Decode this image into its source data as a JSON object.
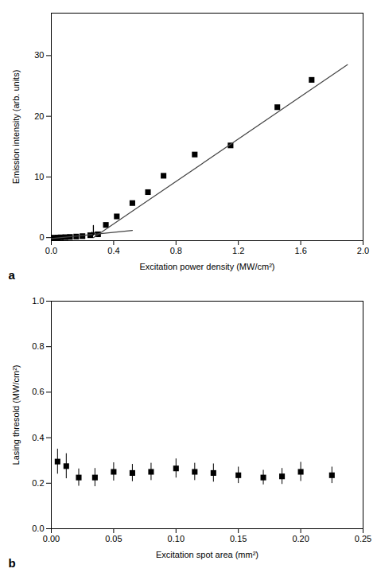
{
  "chart_data": [
    {
      "type": "scatter",
      "panel_label": "a",
      "xlabel": "Excitation power density (MW/cm²)",
      "ylabel": "Emission intensity (arb. units)",
      "xlim": [
        0.0,
        2.0
      ],
      "ylim": [
        -0.5,
        37
      ],
      "xticks": [
        {
          "value": 0.0,
          "label": "0.0"
        },
        0.4,
        0.8,
        1.2,
        1.6,
        {
          "value": 2.0,
          "label": "2.0"
        }
      ],
      "yticks": [
        0,
        10,
        20,
        30
      ],
      "grid": false,
      "series": [
        {
          "type": "scatter",
          "marker": "square",
          "color": "#000000",
          "x": [
            0.02,
            0.04,
            0.06,
            0.09,
            0.12,
            0.16,
            0.2,
            0.25,
            0.3,
            0.35,
            0.42,
            0.52,
            0.62,
            0.72,
            0.92,
            1.15,
            1.45,
            1.67
          ],
          "values": [
            0.0,
            0.02,
            0.05,
            0.08,
            0.12,
            0.18,
            0.25,
            0.4,
            0.55,
            2.1,
            3.5,
            5.7,
            7.5,
            10.2,
            13.7,
            15.2,
            21.5,
            26.0
          ]
        },
        {
          "type": "line",
          "line_style": "solid",
          "color": "#444444",
          "x": [
            0.27,
            1.9
          ],
          "values": [
            0.0,
            28.5
          ]
        },
        {
          "type": "line",
          "line_style": "solid",
          "color": "#444444",
          "x": [
            0.0,
            0.52
          ],
          "values": [
            -0.15,
            1.2
          ]
        }
      ],
      "arrow": {
        "x": 0.27,
        "y_from": 2.0,
        "y_to": 0.45,
        "color": "#000000"
      }
    },
    {
      "type": "scatter",
      "panel_label": "b",
      "xlabel": "Excitation spot area (mm²)",
      "ylabel": "Lasing thresold (MW/cm²)",
      "xlim": [
        0.0,
        0.25
      ],
      "ylim": [
        0.0,
        1.0
      ],
      "xticks": [
        {
          "value": 0.0,
          "label": "0.00"
        },
        0.05,
        {
          "value": 0.1,
          "label": "0.10"
        },
        0.15,
        {
          "value": 0.2,
          "label": "0.20"
        },
        0.25
      ],
      "yticks": [
        {
          "value": 0.0,
          "label": "0.0"
        },
        0.2,
        0.4,
        0.6,
        0.8,
        {
          "value": 1.0,
          "label": "1.0"
        }
      ],
      "grid": false,
      "series": [
        {
          "type": "scatter",
          "marker": "square",
          "color": "#000000",
          "x": [
            0.005,
            0.012,
            0.022,
            0.035,
            0.05,
            0.065,
            0.08,
            0.1,
            0.115,
            0.13,
            0.15,
            0.17,
            0.185,
            0.2,
            0.225
          ],
          "values": [
            0.295,
            0.275,
            0.225,
            0.225,
            0.25,
            0.245,
            0.25,
            0.265,
            0.25,
            0.245,
            0.235,
            0.225,
            0.23,
            0.25,
            0.235
          ],
          "errors": [
            0.055,
            0.055,
            0.038,
            0.04,
            0.04,
            0.038,
            0.038,
            0.042,
            0.038,
            0.04,
            0.036,
            0.032,
            0.035,
            0.042,
            0.036
          ]
        }
      ]
    }
  ]
}
